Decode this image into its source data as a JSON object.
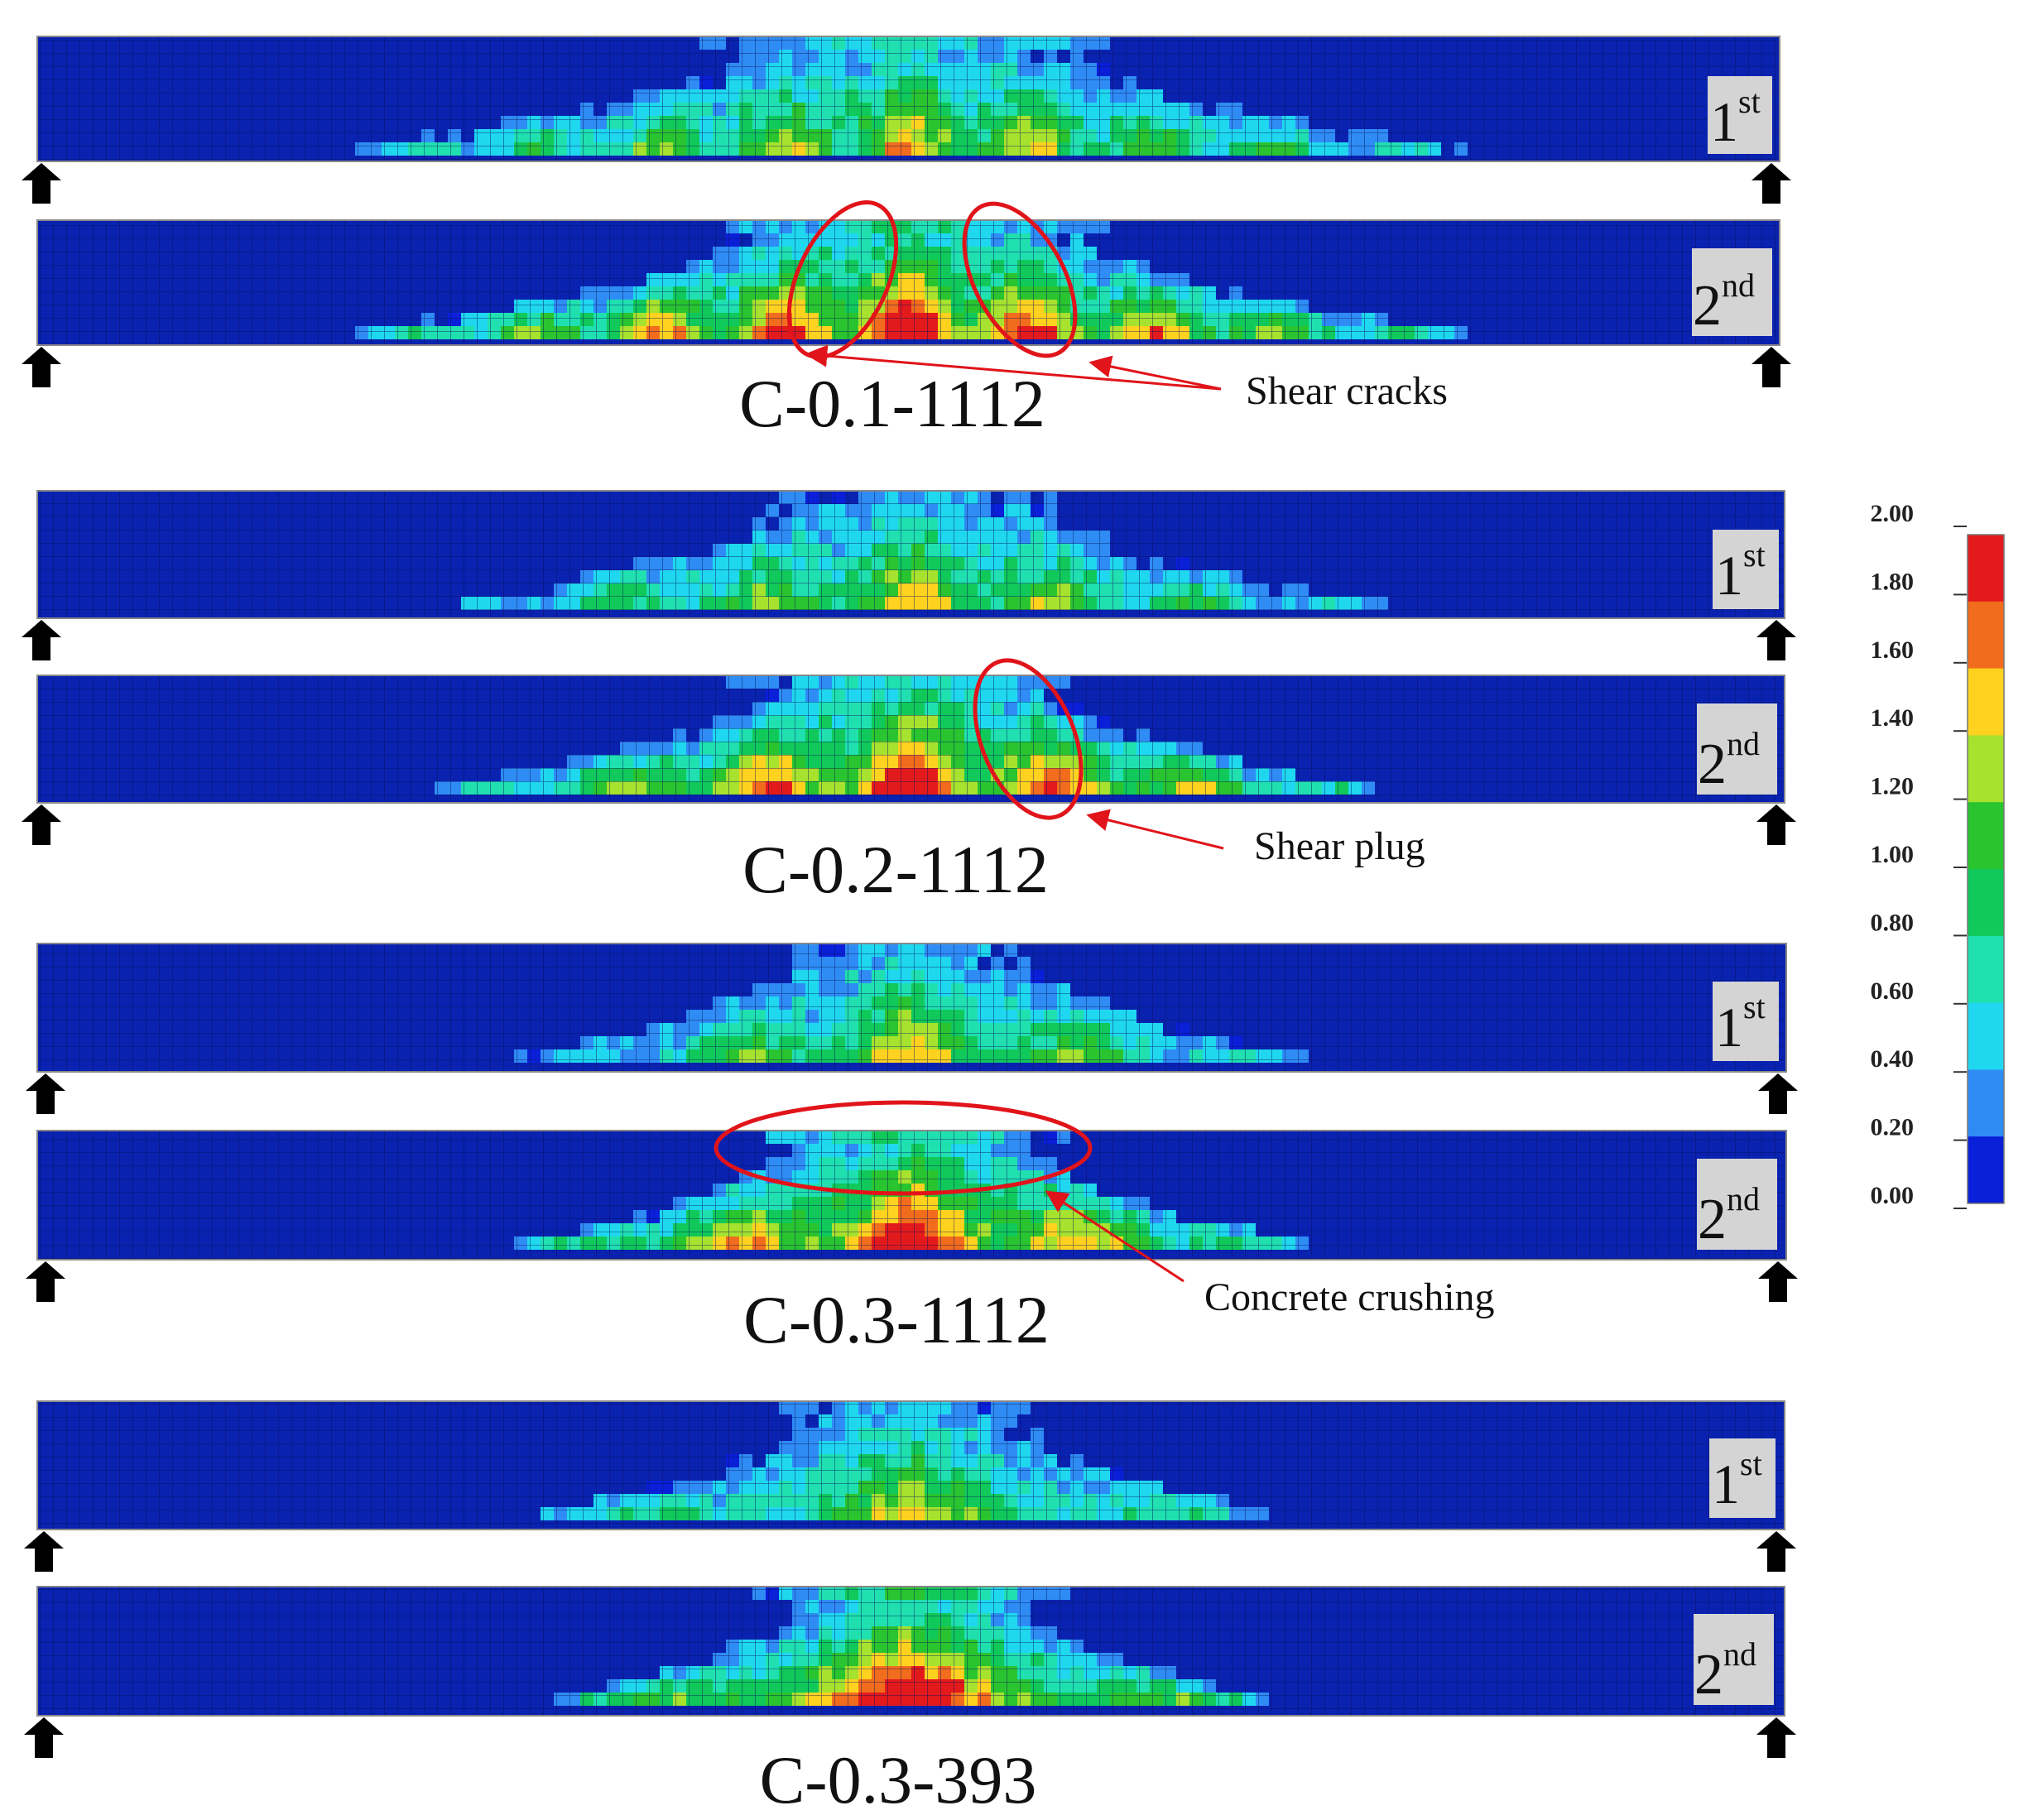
{
  "panels": [
    {
      "caption": "C-0.1-1112",
      "beams": [
        {
          "label_num": "1",
          "label_sup": "st",
          "damage": {
            "peak": 1.5,
            "spread": 0.6,
            "top_band": 0.95,
            "bands": 14
          }
        },
        {
          "label_num": "2",
          "label_sup": "nd",
          "damage": {
            "peak": 2.0,
            "spread": 0.6,
            "top_band": 1.1,
            "bands": 14
          }
        }
      ]
    },
    {
      "caption": "C-0.2-1112",
      "beams": [
        {
          "label_num": "1",
          "label_sup": "st",
          "damage": {
            "peak": 1.4,
            "spread": 0.5,
            "top_band": 0.6,
            "bands": 12
          }
        },
        {
          "label_num": "2",
          "label_sup": "nd",
          "damage": {
            "peak": 2.0,
            "spread": 0.5,
            "top_band": 0.9,
            "bands": 12
          }
        }
      ]
    },
    {
      "caption": "C-0.3-1112",
      "beams": [
        {
          "label_num": "1",
          "label_sup": "st",
          "damage": {
            "peak": 1.4,
            "spread": 0.42,
            "top_band": 0.5,
            "bands": 10
          }
        },
        {
          "label_num": "2",
          "label_sup": "nd",
          "damage": {
            "peak": 2.0,
            "spread": 0.42,
            "top_band": 1.2,
            "bands": 10
          }
        }
      ]
    },
    {
      "caption": "C-0.3-393",
      "beams": [
        {
          "label_num": "1",
          "label_sup": "st",
          "damage": {
            "peak": 1.3,
            "spread": 0.4,
            "top_band": 0.6,
            "bands": 6
          }
        },
        {
          "label_num": "2",
          "label_sup": "nd",
          "damage": {
            "peak": 2.0,
            "spread": 0.38,
            "top_band": 1.5,
            "bands": 6
          }
        }
      ]
    }
  ],
  "annotations": [
    {
      "text": "Shear cracks"
    },
    {
      "text": "Shear plug"
    },
    {
      "text": "Concrete crushing"
    }
  ],
  "colorbar": {
    "ticks": [
      "2.00",
      "1.80",
      "1.60",
      "1.40",
      "1.20",
      "1.00",
      "0.80",
      "0.60",
      "0.40",
      "0.20",
      "0.00"
    ],
    "colors_top_to_bottom": [
      "#e31a1c",
      "#f26c1d",
      "#ffd21f",
      "#a6e22e",
      "#29c42f",
      "#10c95a",
      "#20e0b0",
      "#1fd8f0",
      "#2f8cf5",
      "#0a1fd8"
    ]
  },
  "colors": {
    "background_blue": "#0a22b0",
    "grid_line": "#06105a",
    "label_box": "#d4d4d4",
    "annotation_red": "#e0141a",
    "arrow_black": "#000000"
  },
  "icons": {
    "support": "upward-arrow-icon"
  }
}
